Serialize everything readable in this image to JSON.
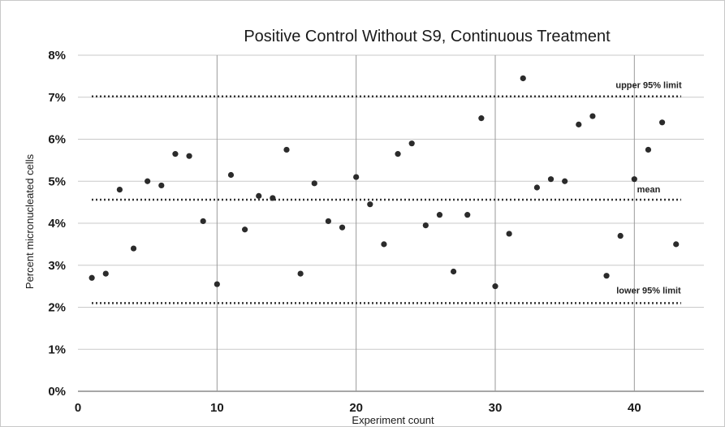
{
  "chart_data": {
    "type": "scatter",
    "title": "Positive Control Without S9, Continuous Treatment",
    "xlabel": "Experiment count",
    "ylabel": "Percent micronucleated cells",
    "xlim": [
      0,
      45
    ],
    "ylim": [
      0,
      8
    ],
    "x_ticks": [
      0,
      10,
      20,
      30,
      40
    ],
    "x_tick_labels": [
      "0",
      "10",
      "20",
      "30",
      "40"
    ],
    "y_ticks": [
      0,
      1,
      2,
      3,
      4,
      5,
      6,
      7,
      8
    ],
    "y_tick_labels": [
      "0%",
      "1%",
      "2%",
      "3%",
      "4%",
      "5%",
      "6%",
      "7%",
      "8%"
    ],
    "grid": true,
    "point_color": "#2b2b2b",
    "reference_lines": [
      {
        "label": "upper 95% limit",
        "value": 7.02
      },
      {
        "label": "mean",
        "value": 4.56
      },
      {
        "label": "lower 95% limit",
        "value": 2.1
      }
    ],
    "points": [
      {
        "x": 1,
        "y": 2.7
      },
      {
        "x": 2,
        "y": 2.8
      },
      {
        "x": 3,
        "y": 4.8
      },
      {
        "x": 4,
        "y": 3.4
      },
      {
        "x": 5,
        "y": 5.0
      },
      {
        "x": 6,
        "y": 4.9
      },
      {
        "x": 7,
        "y": 5.65
      },
      {
        "x": 8,
        "y": 5.6
      },
      {
        "x": 9,
        "y": 4.05
      },
      {
        "x": 10,
        "y": 2.55
      },
      {
        "x": 11,
        "y": 5.15
      },
      {
        "x": 12,
        "y": 3.85
      },
      {
        "x": 13,
        "y": 4.65
      },
      {
        "x": 14,
        "y": 4.6
      },
      {
        "x": 15,
        "y": 5.75
      },
      {
        "x": 16,
        "y": 2.8
      },
      {
        "x": 17,
        "y": 4.95
      },
      {
        "x": 18,
        "y": 4.05
      },
      {
        "x": 19,
        "y": 3.9
      },
      {
        "x": 20,
        "y": 5.1
      },
      {
        "x": 21,
        "y": 4.45
      },
      {
        "x": 22,
        "y": 3.5
      },
      {
        "x": 23,
        "y": 5.65
      },
      {
        "x": 24,
        "y": 5.9
      },
      {
        "x": 25,
        "y": 3.95
      },
      {
        "x": 26,
        "y": 4.2
      },
      {
        "x": 27,
        "y": 2.85
      },
      {
        "x": 28,
        "y": 4.2
      },
      {
        "x": 29,
        "y": 6.5
      },
      {
        "x": 30,
        "y": 2.5
      },
      {
        "x": 31,
        "y": 3.75
      },
      {
        "x": 32,
        "y": 7.45
      },
      {
        "x": 33,
        "y": 4.85
      },
      {
        "x": 34,
        "y": 5.05
      },
      {
        "x": 35,
        "y": 5.0
      },
      {
        "x": 36,
        "y": 6.35
      },
      {
        "x": 37,
        "y": 6.55
      },
      {
        "x": 38,
        "y": 2.75
      },
      {
        "x": 39,
        "y": 3.7
      },
      {
        "x": 40,
        "y": 5.05
      },
      {
        "x": 41,
        "y": 5.75
      },
      {
        "x": 42,
        "y": 6.4
      },
      {
        "x": 43,
        "y": 3.5
      }
    ]
  }
}
